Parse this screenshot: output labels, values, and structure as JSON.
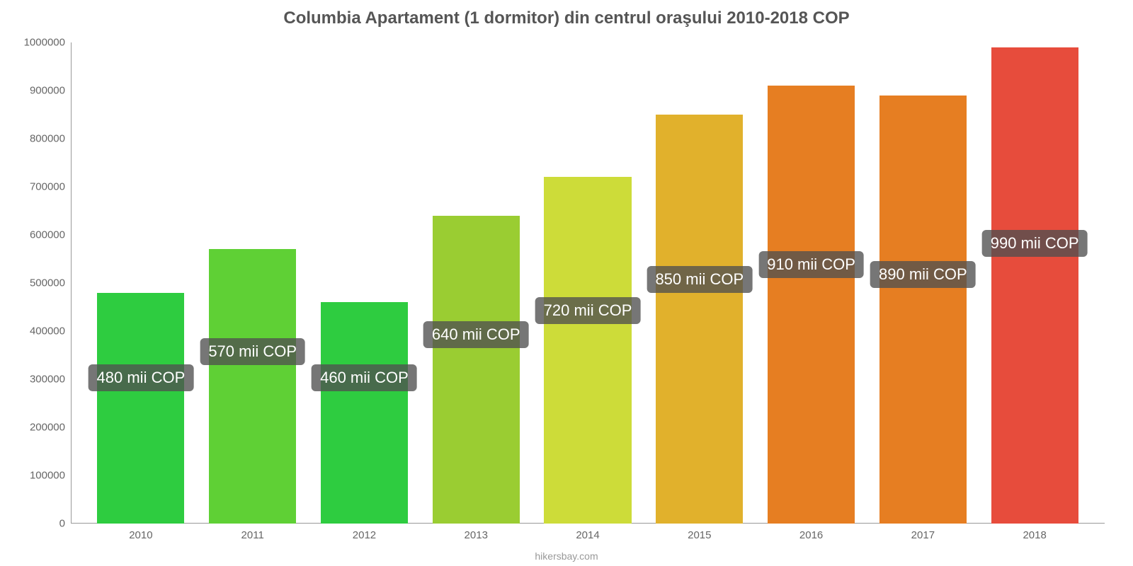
{
  "chart": {
    "type": "bar",
    "title": "Columbia Apartament (1 dormitor) din centrul oraşului 2010-2018 COP",
    "title_fontsize": 24,
    "title_color": "#555555",
    "background_color": "#ffffff",
    "footer": "hikersbay.com",
    "footer_color": "#999999",
    "axis_label_color": "#666666",
    "axis_fontsize": 15,
    "value_label_bg": "rgba(80,80,80,0.78)",
    "value_label_color": "#ffffff",
    "value_label_fontsize": 22,
    "ylim": [
      0,
      1000000
    ],
    "ytick_step": 100000,
    "yticks": [
      {
        "v": 0,
        "label": "0"
      },
      {
        "v": 100000,
        "label": "100000"
      },
      {
        "v": 200000,
        "label": "200000"
      },
      {
        "v": 300000,
        "label": "300000"
      },
      {
        "v": 400000,
        "label": "400000"
      },
      {
        "v": 500000,
        "label": "500000"
      },
      {
        "v": 600000,
        "label": "600000"
      },
      {
        "v": 700000,
        "label": "700000"
      },
      {
        "v": 800000,
        "label": "800000"
      },
      {
        "v": 900000,
        "label": "900000"
      },
      {
        "v": 1000000,
        "label": "1000000"
      }
    ],
    "bar_width": 0.78,
    "bars": [
      {
        "year": "2010",
        "value": 480000,
        "label": "480 mii COP",
        "color": "#2ecc40",
        "label_y": 275000
      },
      {
        "year": "2011",
        "value": 570000,
        "label": "570 mii COP",
        "color": "#5fd035",
        "label_y": 330000
      },
      {
        "year": "2012",
        "value": 460000,
        "label": "460 mii COP",
        "color": "#2ecc40",
        "label_y": 275000
      },
      {
        "year": "2013",
        "value": 640000,
        "label": "640 mii COP",
        "color": "#9acd32",
        "label_y": 365000
      },
      {
        "year": "2014",
        "value": 720000,
        "label": "720 mii COP",
        "color": "#cddc39",
        "label_y": 415000
      },
      {
        "year": "2015",
        "value": 850000,
        "label": "850 mii COP",
        "color": "#e1b12c",
        "label_y": 480000
      },
      {
        "year": "2016",
        "value": 910000,
        "label": "910 mii COP",
        "color": "#e67e22",
        "label_y": 510000
      },
      {
        "year": "2017",
        "value": 890000,
        "label": "890 mii COP",
        "color": "#e67e22",
        "label_y": 490000
      },
      {
        "year": "2018",
        "value": 990000,
        "label": "990 mii COP",
        "color": "#e74c3c",
        "label_y": 555000
      }
    ]
  }
}
